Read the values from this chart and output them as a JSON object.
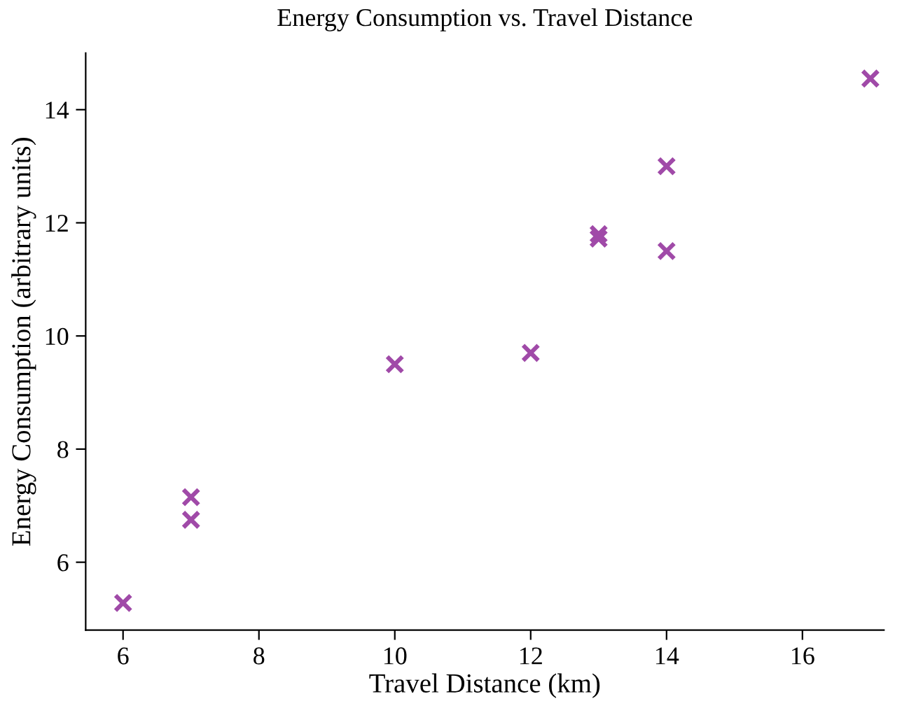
{
  "chart_data": {
    "type": "scatter",
    "title": "Energy Consumption vs. Travel Distance",
    "xlabel": "Travel Distance (km)",
    "ylabel": "Energy Consumption (arbitrary units)",
    "x": [
      6,
      7,
      7,
      10,
      12,
      13,
      13,
      14,
      14,
      17
    ],
    "series": [
      {
        "color": "#a04aa8",
        "values": [
          5.28,
          7.15,
          6.75,
          9.5,
          9.7,
          11.8,
          11.72,
          13.0,
          11.5,
          14.55
        ]
      }
    ],
    "marker": "cross",
    "xlim": [
      5.45,
      17.2
    ],
    "ylim": [
      4.8,
      15.0
    ],
    "xticks": [
      6,
      8,
      10,
      12,
      14,
      16
    ],
    "yticks": [
      6,
      8,
      10,
      12,
      14
    ],
    "grid": false,
    "legend": false
  }
}
